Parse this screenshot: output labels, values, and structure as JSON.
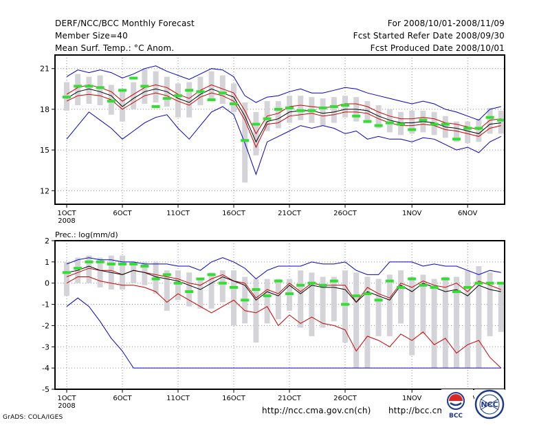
{
  "header": {
    "title": "DERF/NCC/BCC Monthly Forecast",
    "member_size": "Member Size=40",
    "variable": "Mean Surf. Temp.: °C Anom.",
    "period": "For 2008/10/01-2008/11/09",
    "started": "Fcst Started Refer Date 2008/09/30",
    "produced": "Fcst Produced Date 2008/10/01"
  },
  "footer": {
    "credit": "GrADS: COLA/IGES",
    "url1": "http://ncc.cma.gov.cn(ch)",
    "url2": "http://bcc.cma.gov.cn",
    "logo_bcc": "BCC",
    "logo_ncc": "NCC"
  },
  "colors": {
    "max_line": "#0000cc",
    "min_line": "#0000cc",
    "mean_line": "#000000",
    "upper_line": "#cc0000",
    "lower_line": "#cc0000",
    "box": "#d4d4d8",
    "median_mark": "#33dd33",
    "grid": "#888888"
  },
  "chart_data": [
    {
      "type": "line",
      "title": "Mean Surf. Temp.: °C Anom.",
      "xlabel": "",
      "ylabel": "",
      "days": 40,
      "start_day": 1,
      "x_tick_labels": [
        "1OCT",
        "6OCT",
        "11OCT",
        "16OCT",
        "21OCT",
        "26OCT",
        "1NOV",
        "6NOV"
      ],
      "x_tick_days": [
        1,
        6,
        11,
        16,
        21,
        26,
        32,
        37
      ],
      "year_label": "2008",
      "ylim": [
        11,
        22
      ],
      "y_ticks": [
        12,
        15,
        18,
        21
      ],
      "grid": true,
      "series": [
        {
          "name": "max",
          "values": [
            15.8,
            16.8,
            17.8,
            17.2,
            16.6,
            15.8,
            16.4,
            17.0,
            17.4,
            17.6,
            16.6,
            15.8,
            16.8,
            17.8,
            18.2,
            17.6,
            15.5,
            13.2,
            15.6,
            16.0,
            16.4,
            16.8,
            16.6,
            16.8,
            16.6,
            16.2,
            16.4,
            15.8,
            16.0,
            15.8,
            15.8,
            15.6,
            15.9,
            15.8,
            15.4,
            15.0,
            15.2,
            14.8,
            15.6,
            16.0
          ]
        },
        {
          "name": "upper",
          "values": [
            18.6,
            19.0,
            19.1,
            19.0,
            18.7,
            18.0,
            18.5,
            19.0,
            19.2,
            19.0,
            18.6,
            18.3,
            18.9,
            19.2,
            19.0,
            18.6,
            17.2,
            15.2,
            16.9,
            17.0,
            17.5,
            17.6,
            17.7,
            17.5,
            17.6,
            17.8,
            17.8,
            17.7,
            17.3,
            17.0,
            16.8,
            16.8,
            16.9,
            16.8,
            16.5,
            16.4,
            16.2,
            16.0,
            16.6,
            16.8
          ]
        },
        {
          "name": "mean",
          "values": [
            18.8,
            19.3,
            19.5,
            19.3,
            19.0,
            18.2,
            18.8,
            19.3,
            19.5,
            19.3,
            18.8,
            18.5,
            19.1,
            19.5,
            19.2,
            18.9,
            17.5,
            15.6,
            17.1,
            17.3,
            17.8,
            17.9,
            17.9,
            17.7,
            17.8,
            18.0,
            18.0,
            17.9,
            17.5,
            17.2,
            17.0,
            17.0,
            17.1,
            17.0,
            16.7,
            16.6,
            16.4,
            16.2,
            16.9,
            17.0
          ]
        },
        {
          "name": "lower",
          "values": [
            19.1,
            19.6,
            19.8,
            19.6,
            19.3,
            18.6,
            19.1,
            19.6,
            19.8,
            19.6,
            19.1,
            18.8,
            19.4,
            19.8,
            19.5,
            19.2,
            17.9,
            16.2,
            17.5,
            17.7,
            18.2,
            18.3,
            18.2,
            18.1,
            18.2,
            18.4,
            18.4,
            18.2,
            17.8,
            17.5,
            17.3,
            17.3,
            17.4,
            17.3,
            17.0,
            16.9,
            16.7,
            16.5,
            17.2,
            17.3
          ]
        },
        {
          "name": "min",
          "values": [
            20.4,
            20.9,
            20.7,
            20.9,
            20.7,
            20.3,
            20.6,
            21.0,
            21.2,
            20.8,
            20.5,
            20.2,
            20.6,
            21.0,
            20.9,
            20.4,
            19.0,
            18.5,
            18.9,
            19.0,
            19.3,
            19.5,
            19.2,
            19.2,
            19.4,
            19.6,
            19.5,
            19.2,
            19.0,
            18.8,
            18.6,
            18.4,
            18.6,
            18.4,
            18.0,
            17.8,
            17.5,
            17.2,
            18.0,
            18.2
          ]
        }
      ],
      "boxes": {
        "low": [
          17.9,
          18.3,
          18.4,
          18.3,
          17.6,
          17.1,
          18.0,
          18.4,
          18.5,
          18.2,
          17.4,
          17.4,
          18.3,
          18.6,
          18.4,
          17.8,
          12.6,
          14.6,
          16.4,
          16.6,
          17.0,
          17.2,
          17.0,
          16.8,
          17.0,
          17.4,
          17.1,
          17.0,
          16.6,
          16.3,
          16.1,
          16.2,
          16.3,
          16.1,
          15.9,
          15.6,
          15.5,
          15.6,
          16.2,
          16.2
        ],
        "high": [
          20.0,
          20.6,
          20.4,
          20.5,
          19.8,
          19.4,
          20.0,
          21.0,
          20.8,
          20.4,
          19.9,
          20.0,
          20.4,
          20.8,
          20.5,
          19.9,
          18.5,
          17.8,
          18.6,
          18.6,
          19.0,
          19.0,
          18.9,
          18.8,
          18.9,
          19.0,
          18.9,
          18.6,
          18.3,
          18.0,
          17.8,
          17.9,
          17.9,
          17.8,
          17.5,
          17.1,
          17.1,
          17.3,
          18.1,
          17.9
        ],
        "median": [
          18.9,
          19.7,
          19.7,
          19.6,
          18.6,
          19.4,
          20.3,
          19.7,
          18.2,
          18.8,
          19.0,
          19.4,
          19.3,
          18.7,
          19.2,
          18.4,
          15.7,
          16.9,
          17.3,
          18.0,
          18.1,
          17.9,
          17.9,
          18.1,
          18.2,
          18.3,
          17.5,
          17.1,
          16.8,
          17.0,
          16.9,
          16.5,
          17.2,
          16.9,
          16.9,
          15.8,
          16.6,
          16.6,
          17.4,
          17.2
        ]
      }
    },
    {
      "type": "line",
      "title": "Prec.: log(mm/d)",
      "xlabel": "",
      "ylabel": "",
      "days": 40,
      "start_day": 1,
      "x_tick_labels": [
        "1OCT",
        "6OCT",
        "11OCT",
        "16OCT",
        "21OCT",
        "26OCT",
        "1NOV",
        "6NOV"
      ],
      "x_tick_days": [
        1,
        6,
        11,
        16,
        21,
        26,
        32,
        37
      ],
      "year_label": "2008",
      "ylim": [
        -5,
        2
      ],
      "y_ticks": [
        -5,
        -4,
        -3,
        -2,
        -1,
        0,
        1,
        2
      ],
      "grid": true,
      "series": [
        {
          "name": "max",
          "values": [
            0.9,
            1.1,
            1.2,
            1.1,
            1.1,
            1.0,
            1.0,
            0.9,
            0.9,
            0.9,
            0.8,
            0.8,
            0.6,
            1.0,
            1.2,
            1.0,
            0.7,
            0.2,
            0.6,
            0.8,
            0.8,
            0.8,
            1.0,
            0.9,
            0.9,
            1.0,
            0.6,
            0.4,
            0.4,
            1.0,
            1.0,
            1.0,
            0.8,
            0.9,
            0.8,
            0.8,
            0.6,
            0.4,
            0.6,
            0.5
          ]
        },
        {
          "name": "upper",
          "values": [
            0.3,
            0.5,
            0.7,
            0.6,
            0.6,
            0.4,
            0.6,
            0.5,
            0.4,
            0.3,
            0.2,
            0.0,
            -0.1,
            0.2,
            0.4,
            0.1,
            0.0,
            -0.7,
            -0.3,
            -0.5,
            0.0,
            -0.4,
            0.0,
            -0.1,
            -0.1,
            -0.1,
            -0.9,
            -0.2,
            -0.5,
            -0.7,
            0.0,
            -0.2,
            0.1,
            -0.1,
            -0.2,
            0.0,
            -0.4,
            0.1,
            -0.1,
            -0.3
          ]
        },
        {
          "name": "mean",
          "values": [
            0.5,
            0.6,
            0.8,
            0.6,
            0.5,
            0.4,
            0.6,
            0.5,
            0.3,
            0.2,
            0.1,
            -0.1,
            -0.3,
            0.0,
            0.3,
            0.1,
            -0.1,
            -0.8,
            -0.4,
            -0.6,
            -0.1,
            -0.5,
            -0.1,
            -0.2,
            -0.2,
            -0.3,
            -0.9,
            -0.4,
            -0.6,
            -0.8,
            -0.1,
            -0.4,
            0.0,
            -0.2,
            -0.4,
            -0.3,
            -0.6,
            -0.1,
            -0.3,
            -0.4
          ]
        },
        {
          "name": "lower",
          "values": [
            0.0,
            0.3,
            0.3,
            0.1,
            0.0,
            -0.1,
            -0.1,
            -0.2,
            -0.4,
            -0.9,
            -0.5,
            -0.8,
            -1.1,
            -1.4,
            -1.1,
            -0.8,
            -1.3,
            -1.4,
            -1.1,
            -2.0,
            -1.5,
            -1.9,
            -1.6,
            -1.9,
            -2.0,
            -2.2,
            -3.2,
            -2.5,
            -2.7,
            -3.0,
            -2.4,
            -2.7,
            -2.3,
            -2.9,
            -2.6,
            -3.3,
            -2.9,
            -2.7,
            -3.5,
            -4.0
          ]
        },
        {
          "name": "min",
          "values": [
            -1.1,
            -0.7,
            -1.1,
            -1.8,
            -2.6,
            -3.2,
            -4.0,
            -4.0,
            -4.0,
            -4.0,
            -4.0,
            -4.0,
            -4.0,
            -4.0,
            -4.0,
            -4.0,
            -4.0,
            -4.0,
            -4.0,
            -4.0,
            -4.0,
            -4.0,
            -4.0,
            -4.0,
            -4.0,
            -4.0,
            -4.0,
            -4.0,
            -4.0,
            -4.0,
            -4.0,
            -4.0,
            -4.0,
            -4.0,
            -4.0,
            -4.0,
            -4.0,
            -4.0,
            -4.0,
            -4.0
          ]
        }
      ],
      "boxes": {
        "low": [
          -0.6,
          0.0,
          0.0,
          -0.2,
          -0.3,
          -0.3,
          0.0,
          -0.1,
          -0.5,
          -1.3,
          -0.8,
          -1.1,
          -1.2,
          -1.2,
          -0.9,
          -2.0,
          -1.9,
          -2.8,
          -1.9,
          -1.7,
          -1.3,
          -2.1,
          -2.5,
          -2.1,
          -1.8,
          -2.8,
          -4.0,
          -4.0,
          -2.5,
          -2.5,
          -1.9,
          -3.4,
          -2.4,
          -4.0,
          -4.0,
          -4.0,
          -4.0,
          -4.0,
          -2.5,
          -2.3
        ],
        "high": [
          1.0,
          1.2,
          1.3,
          1.2,
          1.3,
          1.3,
          1.0,
          1.0,
          1.0,
          0.6,
          0.6,
          0.5,
          0.2,
          0.5,
          0.6,
          0.6,
          0.3,
          0.2,
          0.2,
          0.2,
          0.2,
          0.6,
          0.5,
          0.3,
          0.3,
          0.6,
          0.5,
          0.3,
          0.2,
          0.4,
          0.6,
          0.3,
          0.4,
          0.2,
          0.3,
          0.3,
          0.6,
          0.8,
          0.5,
          0.0
        ],
        "median": [
          0.5,
          0.7,
          1.0,
          1.0,
          0.9,
          0.9,
          0.9,
          0.8,
          0.2,
          0.4,
          0.0,
          -0.4,
          0.2,
          0.4,
          0.0,
          -0.2,
          -0.8,
          -0.3,
          -0.6,
          0.1,
          -0.5,
          -0.1,
          0.0,
          -0.1,
          0.1,
          -1.0,
          -0.6,
          -0.5,
          -0.8,
          0.1,
          -0.2,
          0.2,
          -0.1,
          -0.2,
          0.2,
          -0.4,
          -0.2,
          0.0,
          0.0,
          0.0
        ]
      }
    }
  ]
}
